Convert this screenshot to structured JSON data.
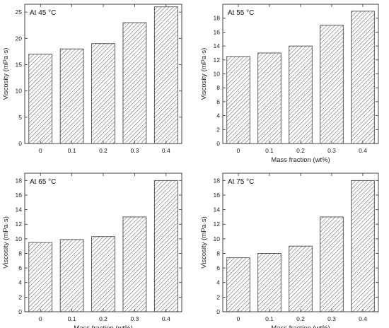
{
  "chart_data": [
    {
      "type": "bar",
      "title": "At 45 °C",
      "xlabel": "",
      "ylabel": "Viscosity (mPa·s)",
      "categories": [
        "0",
        "0.1",
        "0.2",
        "0.3",
        "0.4"
      ],
      "values": [
        17,
        18,
        19,
        23,
        26
      ],
      "ylim": [
        0,
        26.5
      ],
      "yticks": [
        0,
        5,
        10,
        15,
        20,
        25
      ],
      "grid": false
    },
    {
      "type": "bar",
      "title": "At 55 °C",
      "xlabel": "Mass fraction (wt%)",
      "ylabel": "Viscosity (mPa·s)",
      "categories": [
        "0",
        "0.1",
        "0.2",
        "0.3",
        "0.4"
      ],
      "values": [
        12.5,
        13,
        14,
        17,
        19
      ],
      "ylim": [
        0,
        20
      ],
      "yticks": [
        0,
        2,
        4,
        6,
        8,
        10,
        12,
        14,
        16,
        18
      ],
      "grid": false
    },
    {
      "type": "bar",
      "title": "At 65 °C",
      "xlabel": "Mass fraction (wt%)",
      "ylabel": "Viscosity (mPa·s)",
      "categories": [
        "0",
        "0.1",
        "0.2",
        "0.3",
        "0.4"
      ],
      "values": [
        9.5,
        9.9,
        10.3,
        13,
        18
      ],
      "ylim": [
        0,
        19
      ],
      "yticks": [
        0,
        2,
        4,
        6,
        8,
        10,
        12,
        14,
        16,
        18
      ],
      "grid": false
    },
    {
      "type": "bar",
      "title": "At 75 °C",
      "xlabel": "Mass fraction (wt%)",
      "ylabel": "Viscosity (mPa·s)",
      "categories": [
        "0",
        "0.1",
        "0.2",
        "0.3",
        "0.4"
      ],
      "values": [
        7.4,
        8,
        9,
        13,
        18
      ],
      "ylim": [
        0,
        19
      ],
      "yticks": [
        0,
        2,
        4,
        6,
        8,
        10,
        12,
        14,
        16,
        18
      ],
      "grid": false
    }
  ]
}
